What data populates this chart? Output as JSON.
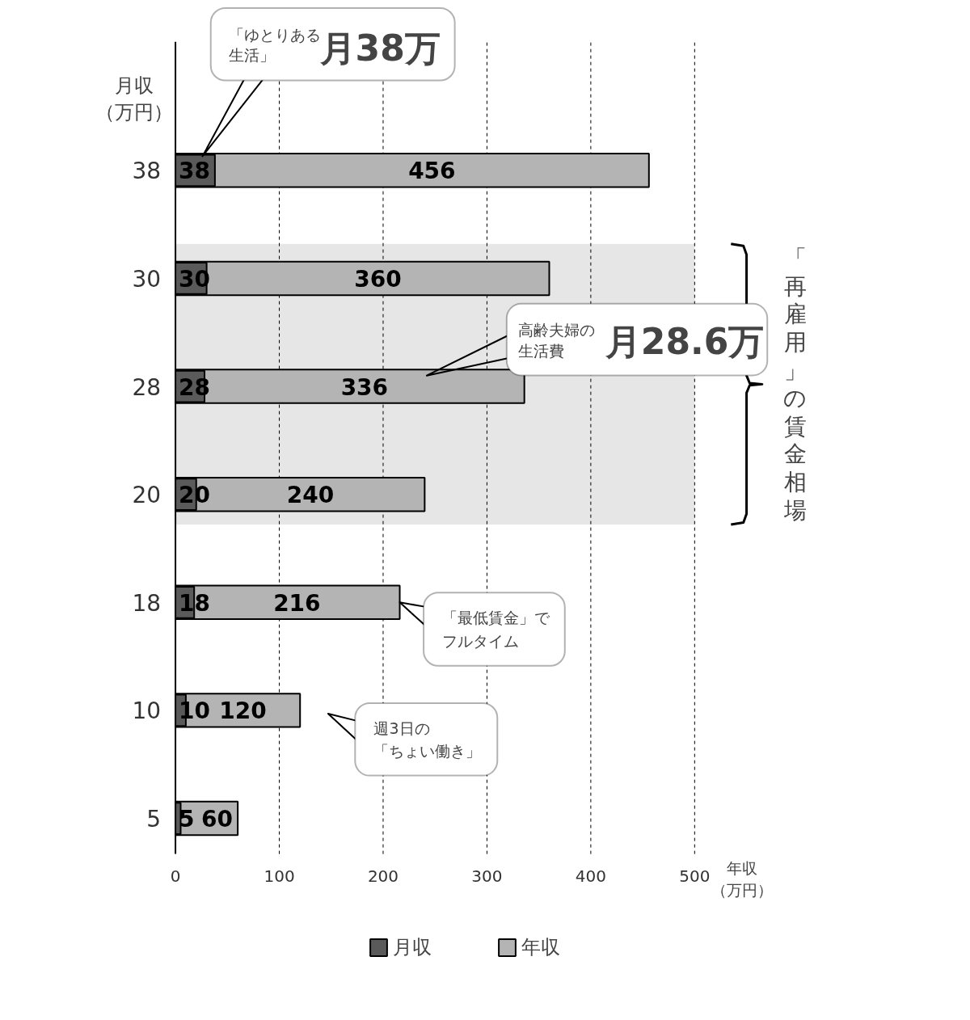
{
  "chart_data": {
    "type": "bar",
    "orientation": "horizontal",
    "categories": [
      "38",
      "30",
      "28",
      "20",
      "18",
      "10",
      "5"
    ],
    "ylabel": "月収（万円）",
    "xlabel": "年収（万円）",
    "series": [
      {
        "name": "月収",
        "color": "#5a5a5a",
        "values": [
          38,
          30,
          28,
          20,
          18,
          10,
          5
        ]
      },
      {
        "name": "年収",
        "color": "#b4b4b4",
        "values": [
          456,
          360,
          336,
          240,
          216,
          120,
          60
        ]
      }
    ],
    "xlim": [
      0,
      500
    ],
    "xticks": [
      0,
      100,
      200,
      300,
      400,
      500
    ],
    "grid": "x",
    "legend": "bottom",
    "data_labels": true,
    "bands": [
      {
        "axis": "y",
        "from": "30",
        "to": "20",
        "label": "「再雇用」の賃金相場",
        "color": "#e6e6e6"
      }
    ],
    "annotations": [
      "「ゆとりある",
      "生活」",
      "月38万",
      "高齢夫婦の",
      "生活費",
      "月28.6万",
      "「最低賃金」で",
      "フルタイム",
      "週3日の",
      "「ちょい働き」"
    ]
  }
}
